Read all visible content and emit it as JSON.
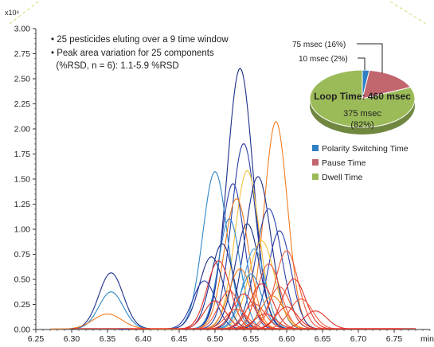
{
  "chart_data": [
    {
      "type": "line",
      "y_multiplier": "x10⁶",
      "xunit": "min",
      "xlim": [
        6.25,
        6.8
      ],
      "ylim": [
        0,
        3.0
      ],
      "xticks": [
        "6.25",
        "6.30",
        "6.35",
        "6.40",
        "6.45",
        "6.50",
        "6.55",
        "6.60",
        "6.65",
        "6.70",
        "6.75"
      ],
      "yticks": [
        "0.00",
        "0.25",
        "0.50",
        "0.75",
        "1.00",
        "1.25",
        "1.50",
        "1.75",
        "2.00",
        "2.25",
        "2.50",
        "2.75",
        "3.00"
      ],
      "notes": [
        "• 25 pesticides eluting over a 9 time window",
        "• Peak area variation for 25 components",
        "  (%RSD, n = 6): 1.1-5.9 %RSD"
      ],
      "series_colors": {
        "orange": "#f07d22",
        "blue": "#2b3fa8",
        "lightblue": "#2e86c8",
        "red": "#e0352b",
        "yellow": "#f3c03a",
        "navy": "#1c2f8a",
        "skyblue": "#4fa7dd",
        "tomato": "#ef5a3c"
      },
      "peaks": [
        {
          "center": 6.535,
          "height": 2.6,
          "width": 0.018,
          "color": "navy"
        },
        {
          "center": 6.585,
          "height": 2.07,
          "width": 0.016,
          "color": "orange"
        },
        {
          "center": 6.54,
          "height": 1.85,
          "width": 0.017,
          "color": "blue"
        },
        {
          "center": 6.545,
          "height": 1.58,
          "width": 0.017,
          "color": "yellow"
        },
        {
          "center": 6.5,
          "height": 1.57,
          "width": 0.017,
          "color": "lightblue"
        },
        {
          "center": 6.56,
          "height": 1.52,
          "width": 0.018,
          "color": "navy"
        },
        {
          "center": 6.525,
          "height": 1.45,
          "width": 0.016,
          "color": "blue"
        },
        {
          "center": 6.53,
          "height": 1.3,
          "width": 0.017,
          "color": "orange"
        },
        {
          "center": 6.575,
          "height": 1.2,
          "width": 0.018,
          "color": "blue"
        },
        {
          "center": 6.52,
          "height": 1.1,
          "width": 0.015,
          "color": "lightblue"
        },
        {
          "center": 6.545,
          "height": 1.05,
          "width": 0.017,
          "color": "navy"
        },
        {
          "center": 6.59,
          "height": 0.98,
          "width": 0.016,
          "color": "blue"
        },
        {
          "center": 6.565,
          "height": 0.88,
          "width": 0.018,
          "color": "yellow"
        },
        {
          "center": 6.51,
          "height": 0.85,
          "width": 0.016,
          "color": "navy"
        },
        {
          "center": 6.555,
          "height": 0.8,
          "width": 0.015,
          "color": "skyblue"
        },
        {
          "center": 6.6,
          "height": 0.78,
          "width": 0.016,
          "color": "tomato"
        },
        {
          "center": 6.495,
          "height": 0.72,
          "width": 0.017,
          "color": "navy"
        },
        {
          "center": 6.505,
          "height": 0.68,
          "width": 0.016,
          "color": "red"
        },
        {
          "center": 6.575,
          "height": 0.65,
          "width": 0.016,
          "color": "tomato"
        },
        {
          "center": 6.535,
          "height": 0.6,
          "width": 0.016,
          "color": "orange"
        },
        {
          "center": 6.355,
          "height": 0.56,
          "width": 0.017,
          "color": "navy"
        },
        {
          "center": 6.55,
          "height": 0.55,
          "width": 0.015,
          "color": "lightblue"
        },
        {
          "center": 6.61,
          "height": 0.5,
          "width": 0.016,
          "color": "red"
        },
        {
          "center": 6.485,
          "height": 0.48,
          "width": 0.016,
          "color": "blue"
        },
        {
          "center": 6.565,
          "height": 0.45,
          "width": 0.016,
          "color": "red"
        },
        {
          "center": 6.59,
          "height": 0.42,
          "width": 0.015,
          "color": "tomato"
        },
        {
          "center": 6.355,
          "height": 0.37,
          "width": 0.017,
          "color": "lightblue"
        },
        {
          "center": 6.52,
          "height": 0.38,
          "width": 0.015,
          "color": "tomato"
        },
        {
          "center": 6.54,
          "height": 0.35,
          "width": 0.015,
          "color": "red"
        },
        {
          "center": 6.58,
          "height": 0.33,
          "width": 0.016,
          "color": "orange"
        },
        {
          "center": 6.62,
          "height": 0.3,
          "width": 0.016,
          "color": "tomato"
        },
        {
          "center": 6.5,
          "height": 0.28,
          "width": 0.015,
          "color": "red"
        },
        {
          "center": 6.555,
          "height": 0.25,
          "width": 0.015,
          "color": "tomato"
        },
        {
          "center": 6.6,
          "height": 0.22,
          "width": 0.015,
          "color": "red"
        },
        {
          "center": 6.53,
          "height": 0.2,
          "width": 0.015,
          "color": "tomato"
        },
        {
          "center": 6.64,
          "height": 0.18,
          "width": 0.016,
          "color": "red"
        },
        {
          "center": 6.35,
          "height": 0.15,
          "width": 0.02,
          "color": "orange"
        },
        {
          "center": 6.57,
          "height": 0.15,
          "width": 0.015,
          "color": "red"
        }
      ]
    },
    {
      "type": "pie",
      "title": "Loop Time: 460 msec",
      "slices": [
        {
          "label": "Polarity Switching Time",
          "value": 10,
          "percent": 2,
          "display": "10 msec (2%)",
          "color": "#2f7fc3"
        },
        {
          "label": "Pause Time",
          "value": 75,
          "percent": 16,
          "display": "75 msec (16%)",
          "color": "#c2666e"
        },
        {
          "label": "Dwell Time",
          "value": 375,
          "percent": 82,
          "display_line1": "375 msec",
          "display_line2": "(82%)",
          "color": "#9bbb59"
        }
      ],
      "legend": [
        "Polarity Switching Time",
        "Pause Time",
        "Dwell Time"
      ]
    }
  ]
}
